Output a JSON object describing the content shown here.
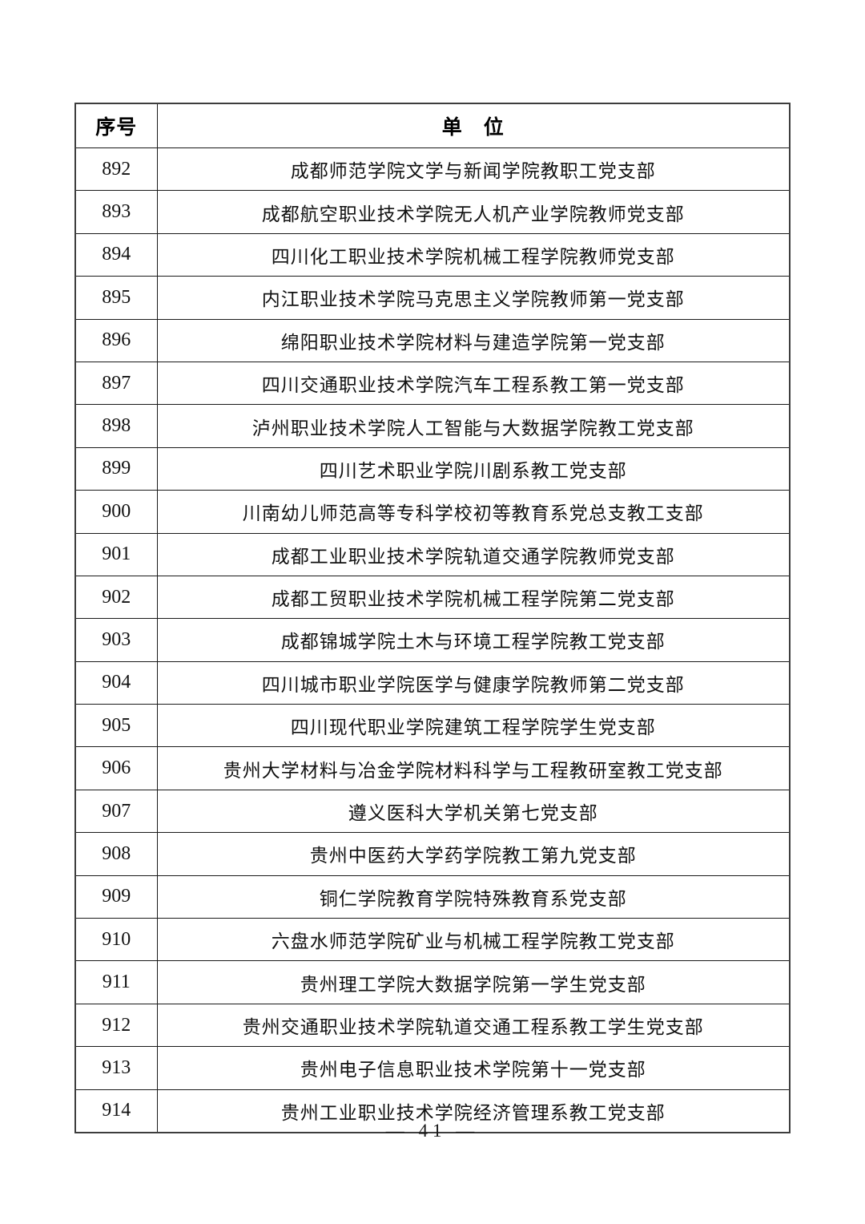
{
  "table": {
    "headers": {
      "no": "序号",
      "unit": "单　位"
    },
    "rows": [
      {
        "no": "892",
        "unit": "成都师范学院文学与新闻学院教职工党支部"
      },
      {
        "no": "893",
        "unit": "成都航空职业技术学院无人机产业学院教师党支部"
      },
      {
        "no": "894",
        "unit": "四川化工职业技术学院机械工程学院教师党支部"
      },
      {
        "no": "895",
        "unit": "内江职业技术学院马克思主义学院教师第一党支部"
      },
      {
        "no": "896",
        "unit": "绵阳职业技术学院材料与建造学院第一党支部"
      },
      {
        "no": "897",
        "unit": "四川交通职业技术学院汽车工程系教工第一党支部"
      },
      {
        "no": "898",
        "unit": "泸州职业技术学院人工智能与大数据学院教工党支部"
      },
      {
        "no": "899",
        "unit": "四川艺术职业学院川剧系教工党支部"
      },
      {
        "no": "900",
        "unit": "川南幼儿师范高等专科学校初等教育系党总支教工支部"
      },
      {
        "no": "901",
        "unit": "成都工业职业技术学院轨道交通学院教师党支部"
      },
      {
        "no": "902",
        "unit": "成都工贸职业技术学院机械工程学院第二党支部"
      },
      {
        "no": "903",
        "unit": "成都锦城学院土木与环境工程学院教工党支部"
      },
      {
        "no": "904",
        "unit": "四川城市职业学院医学与健康学院教师第二党支部"
      },
      {
        "no": "905",
        "unit": "四川现代职业学院建筑工程学院学生党支部"
      },
      {
        "no": "906",
        "unit": "贵州大学材料与冶金学院材料科学与工程教研室教工党支部"
      },
      {
        "no": "907",
        "unit": "遵义医科大学机关第七党支部"
      },
      {
        "no": "908",
        "unit": "贵州中医药大学药学院教工第九党支部"
      },
      {
        "no": "909",
        "unit": "铜仁学院教育学院特殊教育系党支部"
      },
      {
        "no": "910",
        "unit": "六盘水师范学院矿业与机械工程学院教工党支部"
      },
      {
        "no": "911",
        "unit": "贵州理工学院大数据学院第一学生党支部"
      },
      {
        "no": "912",
        "unit": "贵州交通职业技术学院轨道交通工程系教工学生党支部"
      },
      {
        "no": "913",
        "unit": "贵州电子信息职业技术学院第十一党支部"
      },
      {
        "no": "914",
        "unit": "贵州工业职业技术学院经济管理系教工党支部"
      }
    ]
  },
  "footer": {
    "page_label": "— 41 —"
  }
}
